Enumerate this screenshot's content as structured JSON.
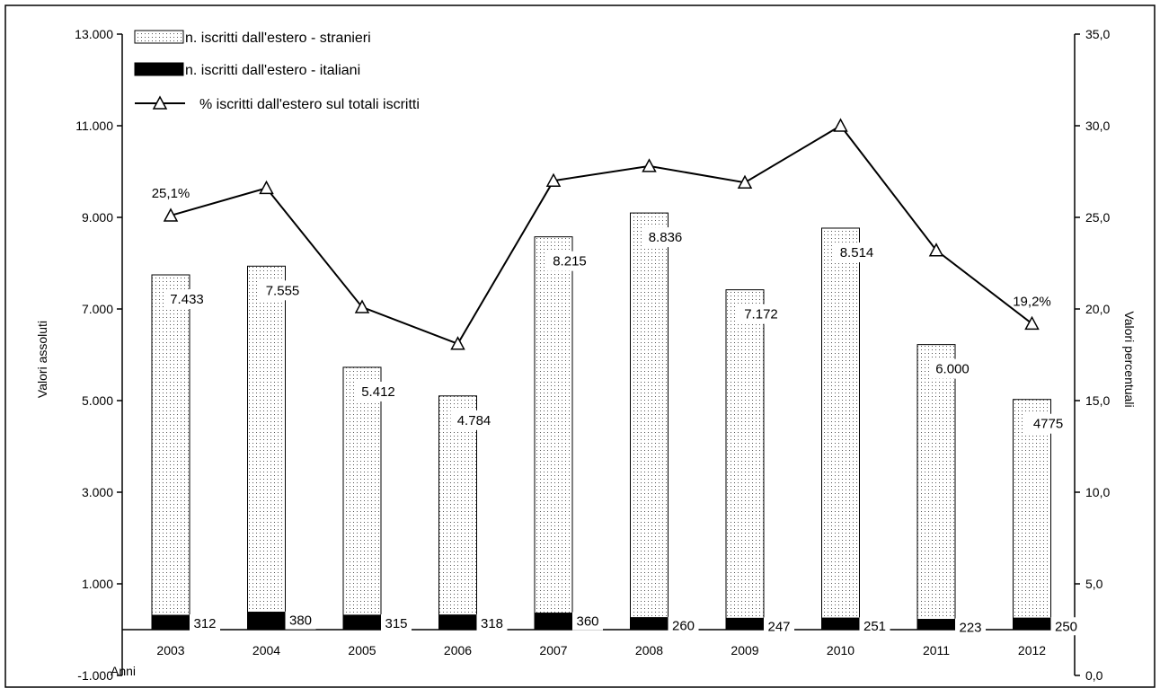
{
  "chart_data": {
    "type": "bar",
    "categories": [
      "2003",
      "2004",
      "2005",
      "2006",
      "2007",
      "2008",
      "2009",
      "2010",
      "2011",
      "2012"
    ],
    "x_axis_label": "Anni",
    "y_left": {
      "label": "Valori assoluti",
      "ylim": [
        -1000,
        13000
      ],
      "ticks": [
        -1000,
        1000,
        3000,
        5000,
        7000,
        9000,
        11000,
        13000
      ],
      "tick_labels": [
        "-1.000",
        "1.000",
        "3.000",
        "5.000",
        "7.000",
        "9.000",
        "11.000",
        "13.000"
      ]
    },
    "y_right": {
      "label": "Valori percentuali",
      "ylim": [
        0,
        35
      ],
      "ticks": [
        0,
        5,
        10,
        15,
        20,
        25,
        30,
        35
      ],
      "tick_labels": [
        "0,0",
        "5,0",
        "10,0",
        "15,0",
        "20,0",
        "25,0",
        "30,0",
        "35,0"
      ]
    },
    "series": [
      {
        "name": "n. iscritti dall'estero - stranieri",
        "kind": "bar-stacked",
        "pattern": "dotted",
        "values": [
          7433,
          7555,
          5412,
          4784,
          8215,
          8836,
          7172,
          8514,
          6000,
          4775
        ],
        "labels": [
          "7.433",
          "7.555",
          "5.412",
          "4.784",
          "8.215",
          "8.836",
          "7.172",
          "8.514",
          "6.000",
          "4775"
        ]
      },
      {
        "name": "n. iscritti dall'estero - italiani",
        "kind": "bar-stacked",
        "pattern": "solid-black",
        "values": [
          312,
          380,
          315,
          318,
          360,
          260,
          247,
          251,
          223,
          250
        ],
        "labels": [
          "312",
          "380",
          "315",
          "318",
          "360",
          "260",
          "247",
          "251",
          "223",
          "250"
        ]
      },
      {
        "name": "% iscritti dall'estero sul  totali iscritti",
        "kind": "line",
        "axis": "right",
        "marker": "triangle",
        "values": [
          25.1,
          26.6,
          20.1,
          18.1,
          27.0,
          27.8,
          26.9,
          30.0,
          23.2,
          19.2
        ],
        "labels": [
          "25,1%",
          "",
          "",
          "",
          "",
          "",
          "",
          "",
          "",
          "19,2%"
        ]
      }
    ],
    "legend_position": "top-left",
    "grid": false
  }
}
